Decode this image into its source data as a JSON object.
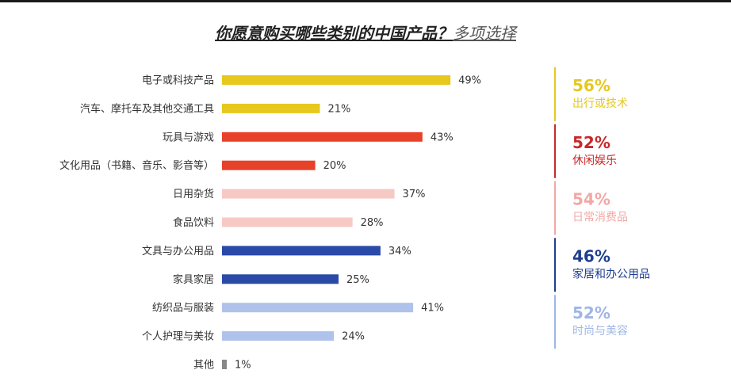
{
  "title": {
    "question": "你愿意购买哪些类别的中国产品？",
    "note": "多项选择"
  },
  "chart_data": {
    "type": "bar",
    "orientation": "horizontal",
    "title": "你愿意购买哪些类别的中国产品？多项选择",
    "categories": [
      "电子或科技产品",
      "汽车、摩托车及其他交通工具",
      "玩具与游戏",
      "文化用品（书籍、音乐、影音等）",
      "日用杂货",
      "食品饮料",
      "文具与办公用品",
      "家具家居",
      "纺织品与服装",
      "个人护理与美妆",
      "其他"
    ],
    "values": [
      49,
      21,
      43,
      20,
      37,
      28,
      34,
      25,
      41,
      24,
      1
    ],
    "value_labels": [
      "49%",
      "21%",
      "43%",
      "20%",
      "37%",
      "28%",
      "34%",
      "25%",
      "41%",
      "24%",
      "1%"
    ],
    "bar_colors": [
      "#e6c81e",
      "#e6c81e",
      "#e8412a",
      "#e8412a",
      "#f7c9c5",
      "#f7c9c5",
      "#2a4aa8",
      "#2a4aa8",
      "#aec2ec",
      "#aec2ec",
      "#888888"
    ],
    "xlim": [
      0,
      100
    ],
    "grid": false,
    "groups": [
      {
        "pct": "56%",
        "name": "出行或技术",
        "color": "#e6c81e",
        "rows": [
          0,
          1
        ]
      },
      {
        "pct": "52%",
        "name": "休闲娱乐",
        "color": "#c8282a",
        "rows": [
          2,
          3
        ]
      },
      {
        "pct": "54%",
        "name": "日常消费品",
        "color": "#f2a8a4",
        "rows": [
          4,
          5
        ]
      },
      {
        "pct": "46%",
        "name": "家居和办公用品",
        "color": "#1f3e8f",
        "rows": [
          6,
          7
        ]
      },
      {
        "pct": "52%",
        "name": "时尚与美容",
        "color": "#9fb6e6",
        "rows": [
          8,
          9
        ]
      }
    ]
  }
}
